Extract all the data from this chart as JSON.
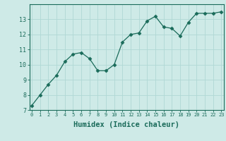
{
  "x": [
    0,
    1,
    2,
    3,
    4,
    5,
    6,
    7,
    8,
    9,
    10,
    11,
    12,
    13,
    14,
    15,
    16,
    17,
    18,
    19,
    20,
    21,
    22,
    23
  ],
  "y": [
    7.3,
    8.0,
    8.7,
    9.3,
    10.2,
    10.7,
    10.8,
    10.4,
    9.6,
    9.6,
    10.0,
    11.5,
    12.0,
    12.1,
    12.9,
    13.2,
    12.5,
    12.4,
    11.9,
    12.8,
    13.4,
    13.4,
    13.4,
    13.5
  ],
  "xlabel": "Humidex (Indice chaleur)",
  "ylim": [
    7,
    14
  ],
  "xlim": [
    -0.3,
    23.3
  ],
  "yticks": [
    7,
    8,
    9,
    10,
    11,
    12,
    13
  ],
  "xticks": [
    0,
    1,
    2,
    3,
    4,
    5,
    6,
    7,
    8,
    9,
    10,
    11,
    12,
    13,
    14,
    15,
    16,
    17,
    18,
    19,
    20,
    21,
    22,
    23
  ],
  "line_color": "#1a6b5a",
  "marker": "D",
  "marker_size": 2.5,
  "bg_color": "#ceeae7",
  "grid_color": "#b0d8d4",
  "axis_color": "#1a6b5a",
  "tick_fontsize": 5.0,
  "ytick_fontsize": 6.0,
  "label_fontsize": 7.5
}
